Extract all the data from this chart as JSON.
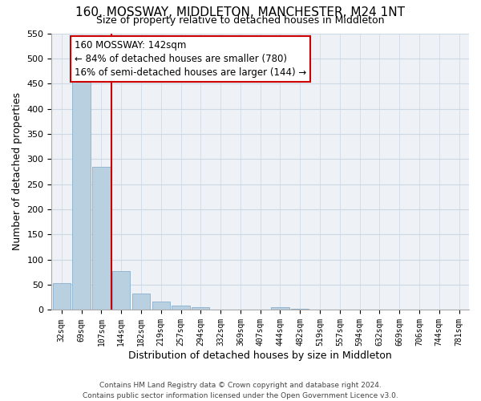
{
  "title": "160, MOSSWAY, MIDDLETON, MANCHESTER, M24 1NT",
  "subtitle": "Size of property relative to detached houses in Middleton",
  "xlabel": "Distribution of detached houses by size in Middleton",
  "ylabel": "Number of detached properties",
  "bar_labels": [
    "32sqm",
    "69sqm",
    "107sqm",
    "144sqm",
    "182sqm",
    "219sqm",
    "257sqm",
    "294sqm",
    "332sqm",
    "369sqm",
    "407sqm",
    "444sqm",
    "482sqm",
    "519sqm",
    "557sqm",
    "594sqm",
    "632sqm",
    "669sqm",
    "706sqm",
    "744sqm",
    "781sqm"
  ],
  "bar_values": [
    53,
    456,
    284,
    78,
    32,
    17,
    9,
    5,
    0,
    0,
    0,
    5,
    3,
    0,
    0,
    0,
    0,
    0,
    0,
    0,
    0
  ],
  "bar_color": "#b8d0e0",
  "bar_edge_color": "#8ab0cc",
  "vline_color": "#cc0000",
  "annotation_text": "160 MOSSWAY: 142sqm\n← 84% of detached houses are smaller (780)\n16% of semi-detached houses are larger (144) →",
  "annotation_box_color": "#ffffff",
  "annotation_box_edge": "#cc0000",
  "ylim": [
    0,
    550
  ],
  "yticks": [
    0,
    50,
    100,
    150,
    200,
    250,
    300,
    350,
    400,
    450,
    500,
    550
  ],
  "footer_line1": "Contains HM Land Registry data © Crown copyright and database right 2024.",
  "footer_line2": "Contains public sector information licensed under the Open Government Licence v3.0.",
  "grid_color": "#ccd8e4",
  "background_color": "#eef2f7",
  "title_fontsize": 11,
  "subtitle_fontsize": 9
}
